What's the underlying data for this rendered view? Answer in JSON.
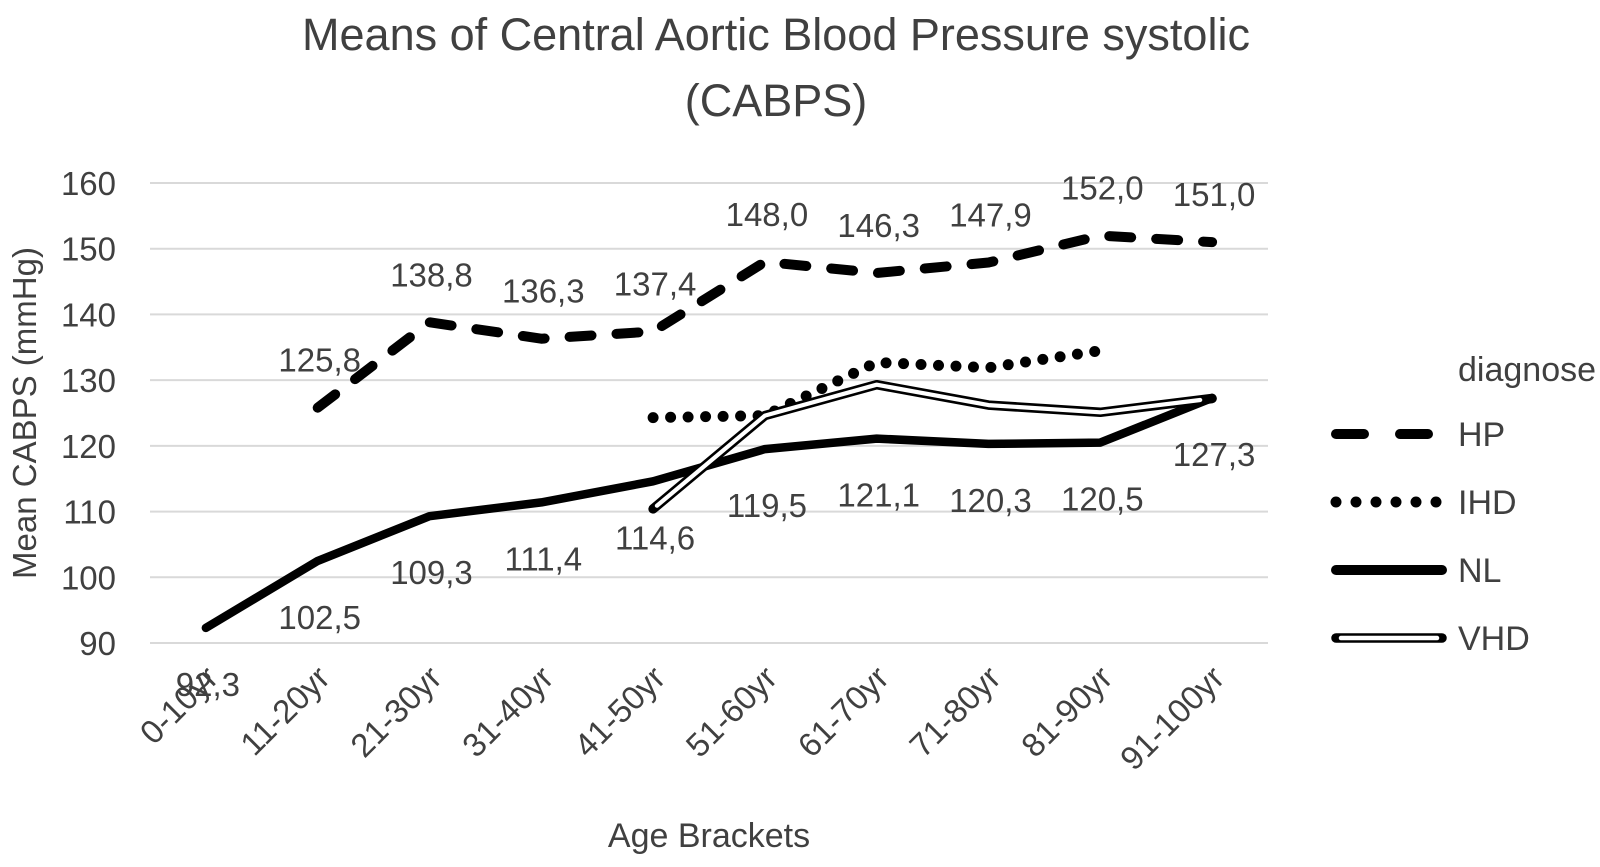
{
  "chart_data": {
    "type": "line",
    "title": [
      "Means of Central Aortic Blood Pressure systolic",
      "(CABPS)"
    ],
    "xlabel": "Age Brackets",
    "ylabel": "Mean CABPS (mmHg)",
    "legend_title": "diagnose",
    "legend_position": "right",
    "grid": true,
    "ylim": [
      90,
      160
    ],
    "yticks": [
      90,
      100,
      110,
      120,
      130,
      140,
      150,
      160
    ],
    "categories": [
      "0-10yr",
      "11-20yr",
      "21-30yr",
      "31-40yr",
      "41-50yr",
      "51-60yr",
      "61-70yr",
      "71-80yr",
      "81-90yr",
      "91-100yr"
    ],
    "colors": {
      "series_line": "#000000",
      "grid": "#d9d9d9",
      "text": "#404040",
      "background": "#ffffff"
    },
    "decimal_separator": ",",
    "series": [
      {
        "name": "HP",
        "line_style": "dashed",
        "label_side": "above",
        "values": [
          null,
          125.8,
          138.8,
          136.3,
          137.4,
          148.0,
          146.3,
          147.9,
          152.0,
          151.0
        ],
        "data_labels": [
          null,
          "125,8",
          "138,8",
          "136,3",
          "137,4",
          "148,0",
          "146,3",
          "147,9",
          "152,0",
          "151,0"
        ]
      },
      {
        "name": "IHD",
        "line_style": "dotted",
        "label_side": null,
        "values": [
          null,
          null,
          null,
          null,
          124.3,
          124.6,
          132.7,
          131.9,
          134.5,
          null
        ],
        "data_labels": null
      },
      {
        "name": "NL",
        "line_style": "solid",
        "label_side": "below",
        "values": [
          92.3,
          102.5,
          109.3,
          111.4,
          114.6,
          119.5,
          121.1,
          120.3,
          120.5,
          127.3
        ],
        "data_labels": [
          "92,3",
          "102,5",
          "109,3",
          "111,4",
          "114,6",
          "119,5",
          "121,1",
          "120,3",
          "120,5",
          "127,3"
        ]
      },
      {
        "name": "VHD",
        "line_style": "double",
        "label_side": null,
        "values": [
          null,
          null,
          null,
          null,
          110.4,
          124.6,
          129.3,
          126.2,
          125.1,
          127.2
        ],
        "data_labels": null
      }
    ]
  }
}
